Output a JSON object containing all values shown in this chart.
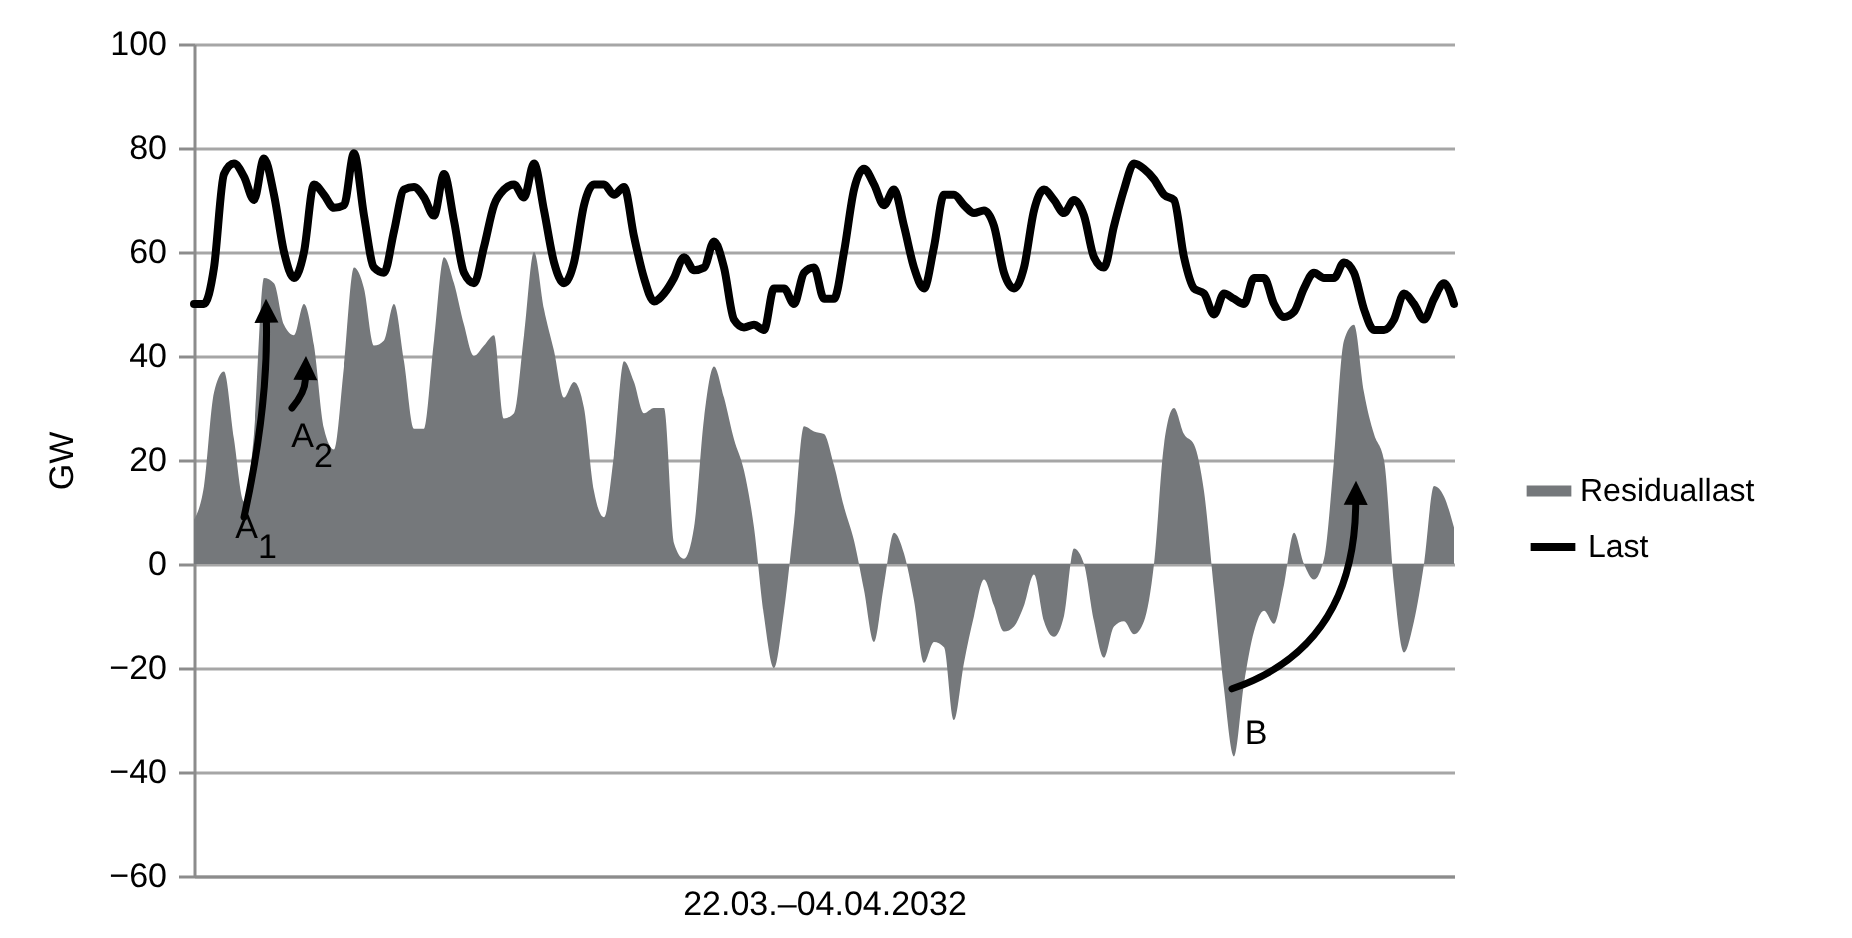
{
  "chart_data": {
    "type": "area",
    "xlabel": "22.03.–04.04.2032",
    "ylabel": "GW",
    "categories": [
      null,
      null,
      null,
      null,
      null,
      null,
      null,
      null,
      null,
      null,
      null,
      null,
      null,
      null,
      null,
      null,
      null,
      null,
      null,
      null,
      null,
      null,
      null,
      null,
      null,
      null,
      null,
      null,
      null,
      null,
      null,
      null,
      null,
      null,
      null,
      null,
      null,
      null,
      null,
      null,
      null,
      null,
      null,
      null,
      null,
      null,
      null,
      null,
      null,
      null,
      null,
      null,
      null,
      null,
      null,
      null,
      null,
      null,
      null,
      null,
      null,
      null,
      null,
      null,
      null,
      null,
      null,
      null,
      null,
      null,
      null,
      null,
      null,
      null,
      null,
      null,
      null,
      null,
      null,
      null,
      null,
      null,
      null,
      null,
      null,
      null,
      null,
      null,
      null,
      null,
      null,
      null,
      null,
      null,
      null,
      null,
      null,
      null,
      null,
      null,
      null,
      null,
      null,
      null,
      null,
      null,
      null,
      null,
      null,
      null,
      null,
      null,
      null,
      null,
      null,
      null,
      null,
      null,
      null,
      null,
      null,
      null,
      null,
      null,
      null,
      null,
      null
    ],
    "series": [
      {
        "name": "Residuallast",
        "color": "#75787b",
        "values": [
          8.5,
          15,
          33,
          37,
          24,
          12,
          25,
          55,
          54,
          46,
          44,
          50,
          42,
          26,
          22,
          38,
          57,
          53,
          42,
          43,
          50,
          39,
          26,
          26,
          43,
          59,
          54,
          46,
          40,
          42,
          44,
          28,
          29,
          44,
          60,
          49,
          41,
          32,
          35,
          30,
          14,
          9,
          21,
          39,
          35,
          29,
          30,
          30,
          4,
          1,
          7,
          28,
          38,
          32,
          24,
          18,
          7,
          -10,
          -20,
          -9,
          8,
          26.5,
          25.5,
          25,
          19,
          11,
          4.5,
          -5,
          -15,
          -4,
          6,
          2,
          -7,
          -19,
          -15,
          -16,
          -30,
          -19,
          -10,
          -3,
          -8,
          -13,
          -12,
          -8,
          -2,
          -11,
          -14,
          -10,
          3,
          0,
          -11,
          -18,
          -12,
          -11,
          -13.5,
          -11,
          0,
          23,
          30,
          25,
          23,
          14,
          -5,
          -24,
          -37,
          -23,
          -13,
          -9,
          -11.5,
          -4,
          6,
          0,
          -3,
          1,
          20,
          43,
          46,
          33,
          25,
          20,
          -4,
          -17,
          -11,
          0,
          15,
          13,
          7
        ]
      },
      {
        "name": "Last",
        "type": "line",
        "color": "#000000",
        "values": [
          50,
          50,
          57,
          75,
          77,
          74.5,
          70,
          78,
          71,
          60,
          55,
          60,
          73,
          71,
          68.5,
          69,
          79,
          67,
          57,
          56,
          64,
          72,
          72.5,
          70.5,
          67,
          75,
          66,
          56,
          54,
          61,
          69,
          72,
          73,
          70.5,
          77,
          68,
          58,
          54,
          58,
          69,
          73,
          73,
          71,
          72.5,
          63,
          55,
          50.5,
          52,
          55,
          59,
          56.5,
          57,
          62,
          57,
          47,
          45.5,
          46,
          45,
          53,
          53,
          50,
          56,
          57,
          51,
          51,
          60,
          72,
          76,
          73,
          69,
          72,
          65,
          57,
          53,
          61,
          71,
          71,
          69,
          67.5,
          68,
          65,
          56,
          53,
          57,
          68,
          72,
          70,
          67.5,
          70,
          67,
          59,
          57,
          65,
          72,
          77,
          76,
          74,
          71,
          70,
          59,
          53,
          52,
          48,
          52,
          51,
          50,
          55,
          55,
          50,
          47.5,
          48.5,
          53,
          56,
          55,
          55,
          58,
          56,
          49,
          45,
          45,
          47,
          52,
          50,
          47,
          51,
          54,
          50
        ]
      }
    ],
    "ylim": [
      -60,
      100
    ],
    "yticks": [
      -60,
      -40,
      -20,
      0,
      20,
      40,
      60,
      80,
      100
    ],
    "grid": "y",
    "legend": "right",
    "tick_labels": "y",
    "annotations": [
      "A$_{1}$",
      "A$_{2}$",
      "B"
    ]
  }
}
